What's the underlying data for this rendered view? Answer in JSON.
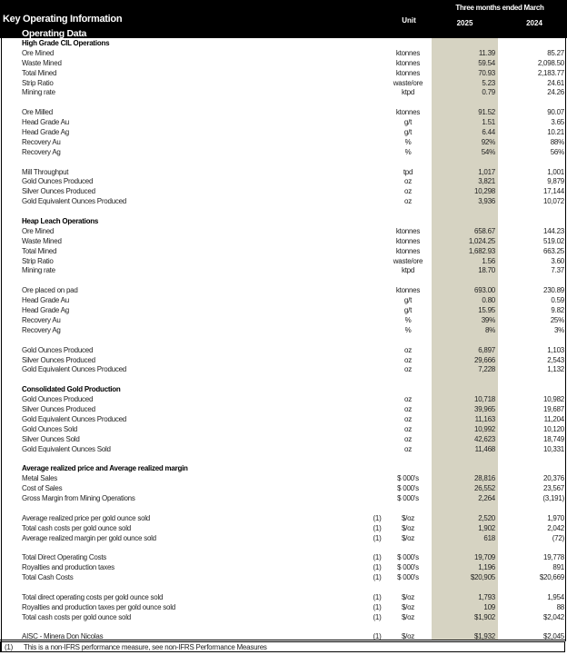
{
  "header": {
    "title": "Key Operating Information",
    "subtitle": "Operating Data",
    "period": "Three months ended March",
    "unit_label": "Unit",
    "year_current": "2025",
    "year_prior": "2024"
  },
  "colors": {
    "header_bg": "#000000",
    "current_column_bg": "#d6d3c2"
  },
  "rows": [
    {
      "type": "section",
      "label": "High Grade CIL Operations"
    },
    {
      "label": "Ore Mined",
      "unit": "ktonnes",
      "v2025": "11.39",
      "v2024": "85.27"
    },
    {
      "label": "Waste Mined",
      "unit": "ktonnes",
      "v2025": "59.54",
      "v2024": "2,098.50"
    },
    {
      "label": "Total Mined",
      "unit": "ktonnes",
      "v2025": "70.93",
      "v2024": "2,183.77"
    },
    {
      "label": "Strip Ratio",
      "unit": "waste/ore",
      "v2025": "5.23",
      "v2024": "24.61"
    },
    {
      "label": "Mining rate",
      "unit": "ktpd",
      "v2025": "0.79",
      "v2024": "24.26"
    },
    {
      "type": "blank"
    },
    {
      "label": "Ore Milled",
      "unit": "ktonnes",
      "v2025": "91.52",
      "v2024": "90.07"
    },
    {
      "label": "Head Grade Au",
      "unit": "g/t",
      "v2025": "1.51",
      "v2024": "3.65"
    },
    {
      "label": "Head Grade Ag",
      "unit": "g/t",
      "v2025": "6.44",
      "v2024": "10.21"
    },
    {
      "label": "Recovery Au",
      "unit": "%",
      "v2025": "92%",
      "v2024": "88%"
    },
    {
      "label": "Recovery Ag",
      "unit": "%",
      "v2025": "54%",
      "v2024": "56%"
    },
    {
      "type": "blank"
    },
    {
      "label": "Mill Throughput",
      "unit": "tpd",
      "v2025": "1,017",
      "v2024": "1,001"
    },
    {
      "label": "Gold Ounces Produced",
      "unit": "oz",
      "v2025": "3,821",
      "v2024": "9,879"
    },
    {
      "label": "Silver Ounces Produced",
      "unit": "oz",
      "v2025": "10,298",
      "v2024": "17,144"
    },
    {
      "label": "Gold Equivalent Ounces Produced",
      "unit": "oz",
      "v2025": "3,936",
      "v2024": "10,072"
    },
    {
      "type": "blank"
    },
    {
      "type": "section",
      "label": "Heap Leach Operations"
    },
    {
      "label": "Ore Mined",
      "unit": "ktonnes",
      "v2025": "658.67",
      "v2024": "144.23"
    },
    {
      "label": "Waste Mined",
      "unit": "ktonnes",
      "v2025": "1,024.25",
      "v2024": "519.02"
    },
    {
      "label": "Total Mined",
      "unit": "ktonnes",
      "v2025": "1,682.93",
      "v2024": "663.25"
    },
    {
      "label": "Strip Ratio",
      "unit": "waste/ore",
      "v2025": "1.56",
      "v2024": "3.60"
    },
    {
      "label": "Mining rate",
      "unit": "ktpd",
      "v2025": "18.70",
      "v2024": "7.37"
    },
    {
      "type": "blank"
    },
    {
      "label": "Ore placed on pad",
      "unit": "ktonnes",
      "v2025": "693.00",
      "v2024": "230.89"
    },
    {
      "label": "Head Grade Au",
      "unit": "g/t",
      "v2025": "0.80",
      "v2024": "0.59"
    },
    {
      "label": "Head Grade Ag",
      "unit": "g/t",
      "v2025": "15.95",
      "v2024": "9.82"
    },
    {
      "label": "Recovery Au",
      "unit": "%",
      "v2025": "39%",
      "v2024": "25%"
    },
    {
      "label": "Recovery Ag",
      "unit": "%",
      "v2025": "8%",
      "v2024": "3%"
    },
    {
      "type": "blank"
    },
    {
      "label": "Gold Ounces Produced",
      "unit": "oz",
      "v2025": "6,897",
      "v2024": "1,103"
    },
    {
      "label": "Silver Ounces Produced",
      "unit": "oz",
      "v2025": "29,666",
      "v2024": "2,543"
    },
    {
      "label": "Gold Equivalent Ounces Produced",
      "unit": "oz",
      "v2025": "7,228",
      "v2024": "1,132"
    },
    {
      "type": "blank"
    },
    {
      "type": "section",
      "label": "Consolidated Gold Production"
    },
    {
      "label": "Gold Ounces Produced",
      "unit": "oz",
      "v2025": "10,718",
      "v2024": "10,982"
    },
    {
      "label": "Silver Ounces Produced",
      "unit": "oz",
      "v2025": "39,965",
      "v2024": "19,687"
    },
    {
      "label": "Gold Equivalent Ounces Produced",
      "unit": "oz",
      "v2025": "11,163",
      "v2024": "11,204"
    },
    {
      "label": "Gold Ounces Sold",
      "unit": "oz",
      "v2025": "10,992",
      "v2024": "10,120"
    },
    {
      "label": "Silver Ounces Sold",
      "unit": "oz",
      "v2025": "42,623",
      "v2024": "18,749"
    },
    {
      "label": "Gold Equivalent Ounces Sold",
      "unit": "oz",
      "v2025": "11,468",
      "v2024": "10,331"
    },
    {
      "type": "blank"
    },
    {
      "type": "section",
      "label": "Average realized price and Average realized margin"
    },
    {
      "label": "Metal Sales",
      "unit": "$ 000's",
      "v2025": "28,816",
      "v2024": "20,376"
    },
    {
      "label": "Cost of Sales",
      "unit": "$ 000's",
      "v2025": "26,552",
      "v2024": "23,567"
    },
    {
      "label": "Gross Margin from Mining Operations",
      "unit": "$ 000's",
      "v2025": "2,264",
      "v2024": "(3,191)"
    },
    {
      "type": "blank"
    },
    {
      "label": "Average realized price per gold ounce sold",
      "note": "(1)",
      "unit": "$/oz",
      "v2025": "2,520",
      "v2024": "1,970"
    },
    {
      "label": "Total cash costs per gold ounce sold",
      "note": "(1)",
      "unit": "$/oz",
      "v2025": "1,902",
      "v2024": "2,042"
    },
    {
      "label": "Average realized margin per gold ounce sold",
      "note": "(1)",
      "unit": "$/oz",
      "v2025": "618",
      "v2024": "(72)"
    },
    {
      "type": "blank"
    },
    {
      "label": "Total Direct Operating Costs",
      "note": "(1)",
      "unit": "$ 000's",
      "v2025": "19,709",
      "v2024": "19,778"
    },
    {
      "label": "Royalties and production taxes",
      "note": "(1)",
      "unit": "$ 000's",
      "v2025": "1,196",
      "v2024": "891"
    },
    {
      "label": "Total Cash Costs",
      "note": "(1)",
      "unit": "$ 000's",
      "v2025": "$20,905",
      "v2024": "$20,669"
    },
    {
      "type": "blank"
    },
    {
      "label": "Total direct operating costs per gold ounce sold",
      "note": "(1)",
      "unit": "$/oz",
      "v2025": "1,793",
      "v2024": "1,954"
    },
    {
      "label": "Royalties and production taxes per gold ounce sold",
      "note": "(1)",
      "unit": "$/oz",
      "v2025": "109",
      "v2024": "88"
    },
    {
      "label": "Total cash costs per gold ounce sold",
      "note": "(1)",
      "unit": "$/oz",
      "v2025": "$1,902",
      "v2024": "$2,042"
    },
    {
      "type": "blank"
    },
    {
      "label": "AISC - Minera Don Nicolas",
      "note": "(1)",
      "unit": "$/oz",
      "v2025": "$1,932",
      "v2024": "$2,045"
    }
  ],
  "footnote": {
    "marker": "(1)",
    "text": "This is a non-IFRS performance measure, see non-IFRS Performance Measures"
  }
}
